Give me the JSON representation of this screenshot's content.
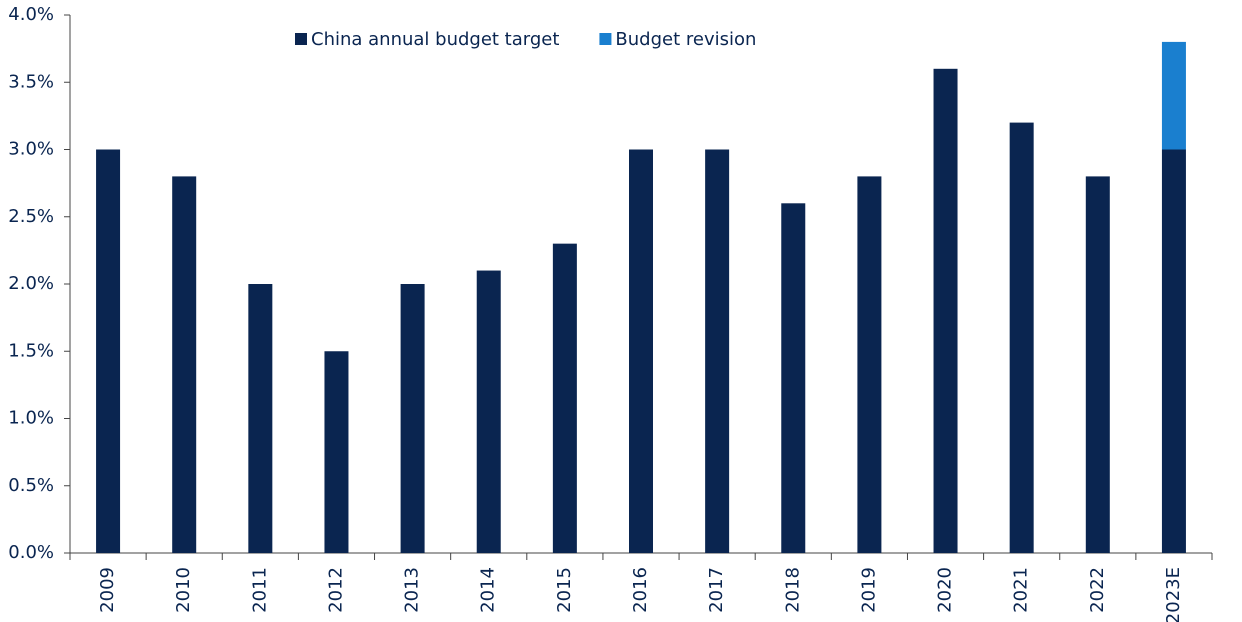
{
  "chart_data": {
    "type": "stacked_bar",
    "categories": [
      "2009",
      "2010",
      "2011",
      "2012",
      "2013",
      "2014",
      "2015",
      "2016",
      "2017",
      "2018",
      "2019",
      "2020",
      "2021",
      "2022",
      "2023E"
    ],
    "series": [
      {
        "name": "China annual budget target",
        "color": "#0a2550",
        "values": [
          3.0,
          2.8,
          2.0,
          1.5,
          2.0,
          2.1,
          2.3,
          3.0,
          3.0,
          2.6,
          2.8,
          3.6,
          3.2,
          2.8,
          3.0
        ]
      },
      {
        "name": "Budget revision",
        "color": "#1a7fcf",
        "values": [
          null,
          null,
          null,
          null,
          null,
          null,
          null,
          null,
          null,
          null,
          null,
          null,
          null,
          null,
          0.8
        ]
      }
    ],
    "ylim": [
      0,
      4
    ],
    "yticks": [
      {
        "value": 0,
        "label": "0.0%"
      },
      {
        "value": 0.5,
        "label": "0.5%"
      },
      {
        "value": 1,
        "label": "1.0%"
      },
      {
        "value": 1.5,
        "label": "1.5%"
      },
      {
        "value": 2,
        "label": "2.0%"
      },
      {
        "value": 2.5,
        "label": "2.5%"
      },
      {
        "value": 3,
        "label": "3.0%"
      },
      {
        "value": 3.5,
        "label": "3.5%"
      },
      {
        "value": 4,
        "label": "4.0%"
      }
    ]
  }
}
